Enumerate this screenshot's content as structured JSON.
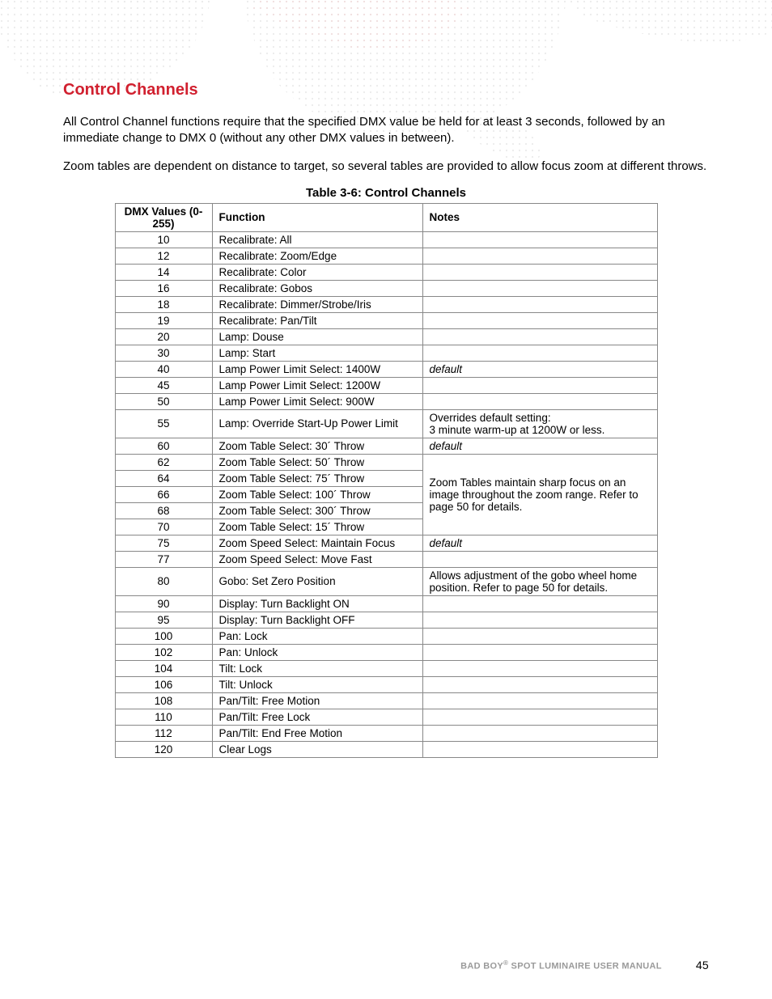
{
  "colors": {
    "title": "#d1202f",
    "text": "#000000",
    "border": "#888888",
    "footer_grey": "#9a9a9a"
  },
  "title": "Control Channels",
  "para1": "All Control Channel functions require that the specified DMX value be held for at least 3 seconds, followed by an immediate change to DMX 0 (without any other DMX values in between).",
  "para2": "Zoom tables are dependent on distance to target, so several tables are provided to allow focus zoom at different throws.",
  "table_caption": "Table 3-6: Control Channels",
  "columns": {
    "dmx": "DMX Values (0-255)",
    "func": "Function",
    "notes": "Notes"
  },
  "rows": [
    {
      "dmx": "10",
      "func": "Recalibrate: All",
      "notes": ""
    },
    {
      "dmx": "12",
      "func": "Recalibrate: Zoom/Edge",
      "notes": ""
    },
    {
      "dmx": "14",
      "func": "Recalibrate: Color",
      "notes": ""
    },
    {
      "dmx": "16",
      "func": "Recalibrate: Gobos",
      "notes": ""
    },
    {
      "dmx": "18",
      "func": "Recalibrate: Dimmer/Strobe/Iris",
      "notes": ""
    },
    {
      "dmx": "19",
      "func": "Recalibrate: Pan/Tilt",
      "notes": ""
    },
    {
      "dmx": "20",
      "func": "Lamp: Douse",
      "notes": ""
    },
    {
      "dmx": "30",
      "func": "Lamp: Start",
      "notes": ""
    },
    {
      "dmx": "40",
      "func": "Lamp Power Limit Select: 1400W",
      "notes": "default",
      "italic": true
    },
    {
      "dmx": "45",
      "func": "Lamp Power Limit Select: 1200W",
      "notes": ""
    },
    {
      "dmx": "50",
      "func": "Lamp Power Limit Select: 900W",
      "notes": ""
    },
    {
      "dmx": "55",
      "func": "Lamp: Override Start-Up Power Limit",
      "notes": "Overrides default setting:\n3 minute warm-up at 1200W or less."
    },
    {
      "dmx": "60",
      "func": "Zoom Table Select: 30´ Throw",
      "notes": "default",
      "italic": true
    },
    {
      "dmx": "62",
      "func": "Zoom Table Select: 50´ Throw",
      "group": "zoom"
    },
    {
      "dmx": "64",
      "func": "Zoom Table Select: 75´ Throw",
      "group": "zoom"
    },
    {
      "dmx": "66",
      "func": "Zoom Table Select: 100´ Throw",
      "group": "zoom"
    },
    {
      "dmx": "68",
      "func": "Zoom Table Select: 300´ Throw",
      "group": "zoom"
    },
    {
      "dmx": "70",
      "func": "Zoom Table Select: 15´ Throw",
      "group": "zoom"
    },
    {
      "dmx": "75",
      "func": "Zoom Speed Select: Maintain Focus",
      "notes": "default",
      "italic": true
    },
    {
      "dmx": "77",
      "func": "Zoom Speed Select: Move Fast",
      "notes": ""
    },
    {
      "dmx": "80",
      "func": "Gobo: Set Zero Position",
      "notes": "Allows adjustment of the gobo wheel home position. Refer to page 50 for details."
    },
    {
      "dmx": "90",
      "func": "Display: Turn Backlight ON",
      "notes": ""
    },
    {
      "dmx": "95",
      "func": "Display: Turn Backlight OFF",
      "notes": ""
    },
    {
      "dmx": "100",
      "func": "Pan: Lock",
      "notes": ""
    },
    {
      "dmx": "102",
      "func": "Pan: Unlock",
      "notes": ""
    },
    {
      "dmx": "104",
      "func": "Tilt: Lock",
      "notes": ""
    },
    {
      "dmx": "106",
      "func": "Tilt: Unlock",
      "notes": ""
    },
    {
      "dmx": "108",
      "func": "Pan/Tilt: Free Motion",
      "notes": ""
    },
    {
      "dmx": "110",
      "func": "Pan/Tilt: Free Lock",
      "notes": ""
    },
    {
      "dmx": "112",
      "func": "Pan/Tilt: End Free Motion",
      "notes": ""
    },
    {
      "dmx": "120",
      "func": "Clear Logs",
      "notes": ""
    }
  ],
  "zoom_group_note": "Zoom Tables maintain sharp focus on an image throughout the zoom range. Refer to page 50 for details.",
  "footer": {
    "manual": "BAD BOY® SPOT LUMINAIRE USER MANUAL",
    "page": "45"
  }
}
